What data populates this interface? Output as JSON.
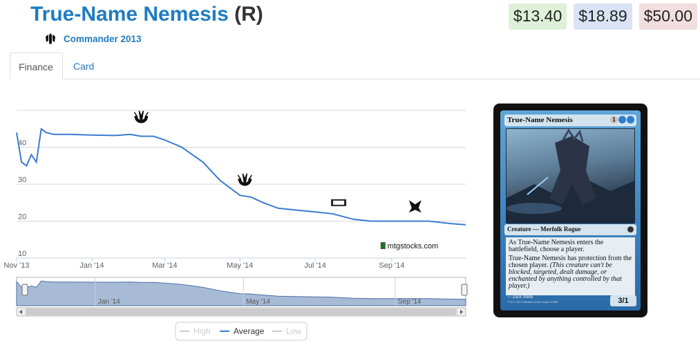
{
  "header": {
    "card_name": "True-Name Nemesis",
    "rarity": "(R)",
    "set_name": "Commander 2013",
    "set_icon": "commander-set-icon"
  },
  "prices": {
    "low": "$13.40",
    "avg": "$18.89",
    "high": "$50.00",
    "colors": {
      "low": "#dff0d8",
      "avg": "#d9e3f5",
      "high": "#f2dede"
    }
  },
  "tabs": [
    {
      "label": "Finance",
      "active": true
    },
    {
      "label": "Card",
      "active": false
    }
  ],
  "chart_data": {
    "type": "line",
    "title": "",
    "xlabel": "",
    "ylabel": "",
    "xlim": [
      "2013-11-01",
      "2014-10-31"
    ],
    "ylim": [
      10,
      50
    ],
    "y_ticks": [
      "10",
      "20",
      "30",
      "40"
    ],
    "x_ticks": [
      {
        "date": "2013-11-01",
        "label": "Nov '13"
      },
      {
        "date": "2014-01-01",
        "label": "Jan '14"
      },
      {
        "date": "2014-03-01",
        "label": "Mar '14"
      },
      {
        "date": "2014-05-01",
        "label": "May '14"
      },
      {
        "date": "2014-07-01",
        "label": "Jul '14"
      },
      {
        "date": "2014-09-01",
        "label": "Sep '14"
      }
    ],
    "series": [
      {
        "name": "Average",
        "color": "#3a7bd0",
        "x": [
          "2013-11-01",
          "2013-11-05",
          "2013-11-09",
          "2013-11-13",
          "2013-11-17",
          "2013-11-21",
          "2013-11-25",
          "2013-12-01",
          "2013-12-15",
          "2014-01-01",
          "2014-01-20",
          "2014-02-01",
          "2014-02-10",
          "2014-02-20",
          "2014-03-01",
          "2014-03-15",
          "2014-04-01",
          "2014-04-15",
          "2014-05-01",
          "2014-05-10",
          "2014-05-20",
          "2014-06-01",
          "2014-06-15",
          "2014-07-01",
          "2014-07-15",
          "2014-08-01",
          "2014-08-15",
          "2014-09-01",
          "2014-09-15",
          "2014-10-01",
          "2014-10-20",
          "2014-10-31"
        ],
        "values": [
          44,
          36,
          35,
          38,
          36,
          45,
          44,
          43.5,
          43.5,
          43.3,
          43.2,
          43.5,
          43,
          43,
          42,
          40,
          36,
          31,
          27,
          26.5,
          25,
          23.5,
          23,
          22.5,
          22,
          20.5,
          20,
          20,
          20,
          20,
          19.3,
          19
        ]
      }
    ],
    "legend": {
      "placement": "bottom-center",
      "items": [
        {
          "name": "High",
          "color": "#cccccc"
        },
        {
          "name": "Average",
          "color": "#3a7bd0"
        },
        {
          "name": "Low",
          "color": "#cccccc"
        }
      ]
    },
    "navigator": {
      "labels": [
        {
          "date": "2014-01-15",
          "label": "Jan '14"
        },
        {
          "date": "2014-05-15",
          "label": "May '14"
        },
        {
          "date": "2014-09-15",
          "label": "Sep '14"
        }
      ]
    },
    "set_markers": [
      {
        "date": "2014-02-10",
        "value": 48,
        "icon": "set-release-icon"
      },
      {
        "date": "2014-05-05",
        "value": 31,
        "icon": "set-release-icon"
      },
      {
        "date": "2014-07-20",
        "value": 25,
        "icon": "m15-set-icon"
      },
      {
        "date": "2014-09-20",
        "value": 24,
        "icon": "khans-set-icon"
      }
    ],
    "credit": "mtgstocks.com",
    "grid": true
  },
  "card_image": {
    "title": "True-Name Nemesis",
    "mana_generic": "1",
    "type_line": "Creature — Merfolk Rogue",
    "rules_1": "As True-Name Nemesis enters the battlefield, choose a player.",
    "rules_2": "True-Name Nemesis has protection from the chosen player.",
    "reminder": "(This creature can't be blocked, targeted, dealt damage, or enchanted by anything controlled by that player.)",
    "illustrator": "Zack Stella",
    "copyright": "™ & © 2013 Wizards of the Coast 43/356",
    "pt": "3/1"
  }
}
